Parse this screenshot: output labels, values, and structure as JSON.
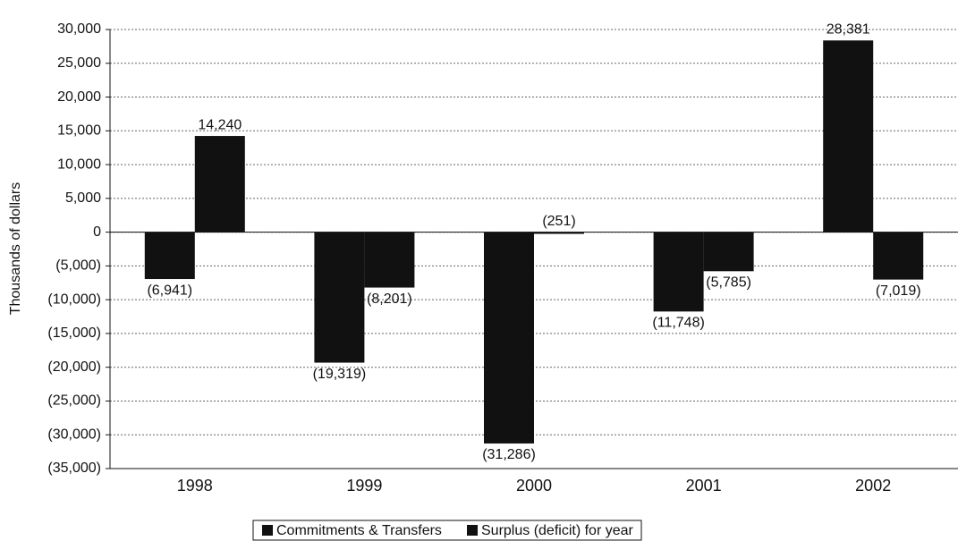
{
  "chart_data": {
    "type": "bar",
    "y_label": "Thousands of dollars",
    "categories": [
      "1998",
      "1999",
      "2000",
      "2001",
      "2002"
    ],
    "series": [
      {
        "name": "Commitments & Transfers",
        "color": "#111111",
        "values": [
          -6941,
          -19319,
          -31286,
          -11748,
          28381
        ],
        "value_labels": [
          "(6,941)",
          "(19,319)",
          "(31,286)",
          "(11,748)",
          "28,381"
        ]
      },
      {
        "name": "Surplus (deficit) for year",
        "color": "#111111",
        "values": [
          14240,
          -8201,
          -251,
          -5785,
          -7019
        ],
        "value_labels": [
          "14,240",
          "(8,201)",
          "(251)",
          "(5,785)",
          "(7,019)"
        ]
      }
    ],
    "ylim": [
      -35000,
      30000
    ],
    "yticks": [
      {
        "value": -35000,
        "label": "(35,000)"
      },
      {
        "value": -30000,
        "label": "(30,000)"
      },
      {
        "value": -25000,
        "label": "(25,000)"
      },
      {
        "value": -20000,
        "label": "(20,000)"
      },
      {
        "value": -15000,
        "label": "(15,000)"
      },
      {
        "value": -10000,
        "label": "(10,000)"
      },
      {
        "value": -5000,
        "label": "(5,000)"
      },
      0,
      {
        "value": 5000,
        "label": "5,000"
      },
      {
        "value": 10000,
        "label": "10,000"
      },
      {
        "value": 15000,
        "label": "15,000"
      },
      {
        "value": 20000,
        "label": "20,000"
      },
      {
        "value": 25000,
        "label": "25,000"
      },
      {
        "value": 30000,
        "label": "30,000"
      }
    ],
    "grid": true
  }
}
